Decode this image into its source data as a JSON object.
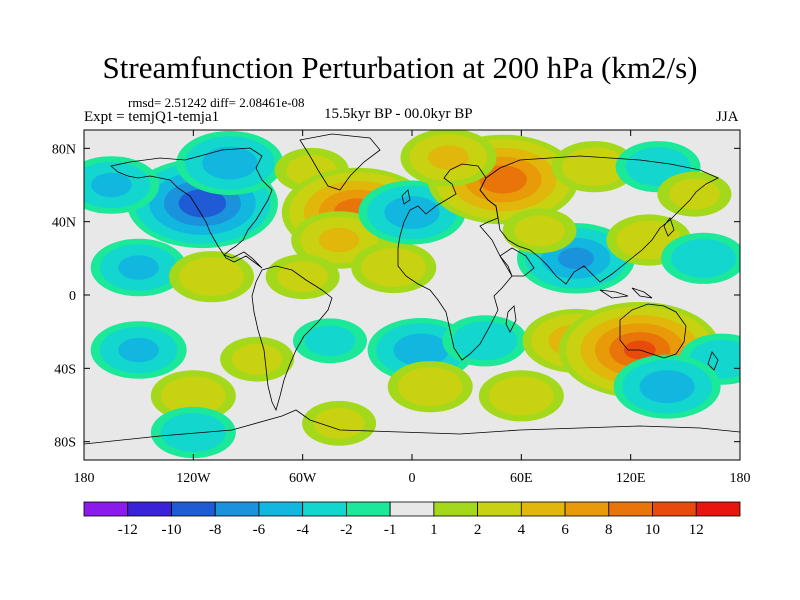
{
  "chart_data": {
    "type": "heatmap",
    "title": "Streamfunction Perturbation at 200 hPa (km2/s)",
    "subtitle_stats": "rmsd= 2.51242 diff= 2.08461e-08",
    "experiment": "Expt = temjQ1-temja1",
    "period": "15.5kyr BP - 00.0kyr BP",
    "season": "JJA",
    "x_range": [
      -180,
      180
    ],
    "y_range": [
      -90,
      90
    ],
    "x_ticks": [
      {
        "value": -180,
        "label": "180"
      },
      {
        "value": -120,
        "label": "120W"
      },
      {
        "value": -60,
        "label": "60W"
      },
      {
        "value": 0,
        "label": "0"
      },
      {
        "value": 60,
        "label": "60E"
      },
      {
        "value": 120,
        "label": "120E"
      },
      {
        "value": 180,
        "label": "180"
      }
    ],
    "y_ticks": [
      {
        "value": 80,
        "label": "80N"
      },
      {
        "value": 40,
        "label": "40N"
      },
      {
        "value": 0,
        "label": "0"
      },
      {
        "value": -40,
        "label": "40S"
      },
      {
        "value": -80,
        "label": "80S"
      }
    ],
    "colorbar": {
      "colors": [
        "#8b1bec",
        "#3a22d8",
        "#1e5bd4",
        "#1b93dc",
        "#12b7e0",
        "#13d6cf",
        "#1ce89a",
        "#e8e8e8",
        "#a4d81a",
        "#c8d210",
        "#e0b70a",
        "#e89a08",
        "#e8740a",
        "#e84a0c",
        "#e8140e"
      ],
      "tick_labels": [
        "-12",
        "-10",
        "-8",
        "-6",
        "-4",
        "-2",
        "-1",
        "1",
        "2",
        "4",
        "6",
        "8",
        "10",
        "12"
      ]
    },
    "anomalies": [
      {
        "lon": -115,
        "lat": 50,
        "value": -9
      },
      {
        "lon": -100,
        "lat": 72,
        "value": -5
      },
      {
        "lon": -165,
        "lat": 60,
        "value": -4
      },
      {
        "lon": -55,
        "lat": 68,
        "value": 2
      },
      {
        "lon": -30,
        "lat": 45,
        "value": 9
      },
      {
        "lon": -40,
        "lat": 30,
        "value": 4
      },
      {
        "lon": -10,
        "lat": 15,
        "value": 3
      },
      {
        "lon": 0,
        "lat": 45,
        "value": -5
      },
      {
        "lon": 50,
        "lat": 63,
        "value": 9
      },
      {
        "lon": 20,
        "lat": 75,
        "value": 4
      },
      {
        "lon": 100,
        "lat": 70,
        "value": 3
      },
      {
        "lon": 135,
        "lat": 70,
        "value": -3
      },
      {
        "lon": 155,
        "lat": 55,
        "value": 2
      },
      {
        "lon": 90,
        "lat": 20,
        "value": -6
      },
      {
        "lon": 130,
        "lat": 30,
        "value": 3
      },
      {
        "lon": 160,
        "lat": 20,
        "value": -3
      },
      {
        "lon": 70,
        "lat": 35,
        "value": 2
      },
      {
        "lon": -150,
        "lat": 15,
        "value": -4
      },
      {
        "lon": -110,
        "lat": 10,
        "value": 3
      },
      {
        "lon": -60,
        "lat": 10,
        "value": 2
      },
      {
        "lon": -150,
        "lat": -30,
        "value": -4
      },
      {
        "lon": -85,
        "lat": -35,
        "value": 2
      },
      {
        "lon": -45,
        "lat": -25,
        "value": -2
      },
      {
        "lon": 5,
        "lat": -30,
        "value": -5
      },
      {
        "lon": 40,
        "lat": -25,
        "value": -3
      },
      {
        "lon": 90,
        "lat": -25,
        "value": 5
      },
      {
        "lon": 125,
        "lat": -30,
        "value": 10
      },
      {
        "lon": 170,
        "lat": -35,
        "value": -3
      },
      {
        "lon": 10,
        "lat": -50,
        "value": 3
      },
      {
        "lon": 60,
        "lat": -55,
        "value": 3
      },
      {
        "lon": 140,
        "lat": -50,
        "value": -5
      },
      {
        "lon": -120,
        "lat": -55,
        "value": 3
      },
      {
        "lon": -120,
        "lat": -75,
        "value": -3
      },
      {
        "lon": -40,
        "lat": -70,
        "value": 2
      }
    ]
  }
}
